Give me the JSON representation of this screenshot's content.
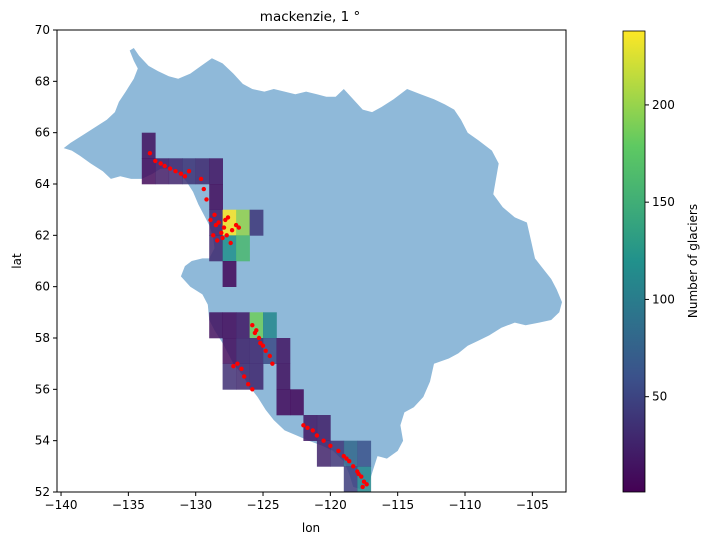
{
  "chart_data": {
    "type": "heatmap",
    "title": "mackenzie, 1 °",
    "xlabel": "lon",
    "ylabel": "lat",
    "xlim": [
      -140.3,
      -102.5
    ],
    "ylim": [
      52,
      70
    ],
    "xticks": [
      -140,
      -135,
      -130,
      -125,
      -120,
      -115,
      -110,
      -105
    ],
    "yticks": [
      52,
      54,
      56,
      58,
      60,
      62,
      64,
      66,
      68,
      70
    ],
    "grid": false,
    "colormap": "viridis",
    "colorbar": {
      "label": "Number of glaciers",
      "min": 1,
      "max": 238,
      "ticks": [
        50,
        100,
        150,
        200
      ]
    },
    "basin_color": "#8fb9d9",
    "point_color": "#ff0000",
    "basin_outline": [
      [
        -139.8,
        65.4
      ],
      [
        -139.2,
        65.3
      ],
      [
        -138.6,
        65.1
      ],
      [
        -137.8,
        64.8
      ],
      [
        -136.9,
        64.5
      ],
      [
        -136.3,
        64.2
      ],
      [
        -135.6,
        64.3
      ],
      [
        -134.8,
        64.2
      ],
      [
        -134.0,
        64.2
      ],
      [
        -133.2,
        64.4
      ],
      [
        -132.6,
        64.6
      ],
      [
        -131.8,
        64.6
      ],
      [
        -131.2,
        64.4
      ],
      [
        -130.7,
        64.1
      ],
      [
        -130.2,
        63.7
      ],
      [
        -129.8,
        63.2
      ],
      [
        -129.4,
        62.8
      ],
      [
        -129.0,
        62.4
      ],
      [
        -128.7,
        61.9
      ],
      [
        -128.6,
        61.5
      ],
      [
        -129.0,
        61.1
      ],
      [
        -129.5,
        61.1
      ],
      [
        -130.3,
        61.0
      ],
      [
        -130.8,
        60.8
      ],
      [
        -131.1,
        60.4
      ],
      [
        -130.4,
        60.0
      ],
      [
        -129.5,
        59.7
      ],
      [
        -129.1,
        59.3
      ],
      [
        -129.0,
        58.7
      ],
      [
        -128.6,
        58.3
      ],
      [
        -128.0,
        57.8
      ],
      [
        -127.6,
        57.4
      ],
      [
        -127.2,
        57.0
      ],
      [
        -126.6,
        56.6
      ],
      [
        -126.0,
        56.1
      ],
      [
        -125.4,
        55.7
      ],
      [
        -124.8,
        55.2
      ],
      [
        -124.2,
        54.8
      ],
      [
        -123.4,
        54.4
      ],
      [
        -122.5,
        54.2
      ],
      [
        -121.6,
        54.0
      ],
      [
        -120.6,
        53.8
      ],
      [
        -119.8,
        53.6
      ],
      [
        -119.0,
        53.2
      ],
      [
        -118.6,
        52.7
      ],
      [
        -118.3,
        52.2
      ],
      [
        -117.7,
        52.1
      ],
      [
        -117.1,
        52.4
      ],
      [
        -116.8,
        52.9
      ],
      [
        -116.5,
        53.4
      ],
      [
        -115.8,
        53.3
      ],
      [
        -115.0,
        53.6
      ],
      [
        -114.6,
        54.0
      ],
      [
        -114.8,
        54.6
      ],
      [
        -114.5,
        55.1
      ],
      [
        -113.8,
        55.3
      ],
      [
        -113.1,
        55.7
      ],
      [
        -112.6,
        56.3
      ],
      [
        -112.3,
        57.0
      ],
      [
        -111.2,
        57.2
      ],
      [
        -110.5,
        57.4
      ],
      [
        -109.8,
        57.7
      ],
      [
        -109.0,
        57.9
      ],
      [
        -108.2,
        58.1
      ],
      [
        -107.3,
        58.4
      ],
      [
        -106.3,
        58.6
      ],
      [
        -105.5,
        58.5
      ],
      [
        -104.5,
        58.6
      ],
      [
        -103.6,
        58.7
      ],
      [
        -103.0,
        59.0
      ],
      [
        -102.8,
        59.4
      ],
      [
        -103.2,
        59.9
      ],
      [
        -103.6,
        60.3
      ],
      [
        -104.2,
        60.7
      ],
      [
        -104.8,
        61.1
      ],
      [
        -105.1,
        61.8
      ],
      [
        -105.4,
        62.5
      ],
      [
        -106.3,
        62.7
      ],
      [
        -107.2,
        63.1
      ],
      [
        -107.9,
        63.6
      ],
      [
        -107.7,
        64.2
      ],
      [
        -107.5,
        64.8
      ],
      [
        -108.0,
        65.3
      ],
      [
        -109.0,
        65.7
      ],
      [
        -109.8,
        66.0
      ],
      [
        -110.3,
        66.5
      ],
      [
        -110.8,
        66.9
      ],
      [
        -111.5,
        67.1
      ],
      [
        -112.3,
        67.3
      ],
      [
        -113.3,
        67.5
      ],
      [
        -114.3,
        67.7
      ],
      [
        -115.3,
        67.3
      ],
      [
        -116.2,
        67.0
      ],
      [
        -116.9,
        66.8
      ],
      [
        -117.6,
        66.9
      ],
      [
        -118.3,
        67.3
      ],
      [
        -119.0,
        67.7
      ],
      [
        -119.6,
        67.4
      ],
      [
        -120.3,
        67.4
      ],
      [
        -121.0,
        67.5
      ],
      [
        -121.8,
        67.6
      ],
      [
        -122.6,
        67.5
      ],
      [
        -123.4,
        67.6
      ],
      [
        -124.2,
        67.7
      ],
      [
        -124.9,
        67.6
      ],
      [
        -125.8,
        67.7
      ],
      [
        -126.5,
        67.9
      ],
      [
        -127.2,
        68.3
      ],
      [
        -128.0,
        68.7
      ],
      [
        -128.8,
        68.9
      ],
      [
        -129.6,
        68.6
      ],
      [
        -130.4,
        68.3
      ],
      [
        -131.3,
        68.1
      ],
      [
        -132.0,
        68.2
      ],
      [
        -132.8,
        68.4
      ],
      [
        -133.5,
        68.6
      ],
      [
        -134.2,
        69.0
      ],
      [
        -134.6,
        69.3
      ],
      [
        -134.9,
        69.2
      ],
      [
        -134.6,
        68.8
      ],
      [
        -134.3,
        68.5
      ],
      [
        -134.6,
        68.1
      ],
      [
        -135.2,
        67.6
      ],
      [
        -135.7,
        67.2
      ],
      [
        -136.0,
        66.8
      ],
      [
        -136.6,
        66.5
      ],
      [
        -137.5,
        66.2
      ],
      [
        -138.4,
        65.9
      ],
      [
        -139.3,
        65.6
      ],
      [
        -139.8,
        65.4
      ]
    ],
    "cells": [
      {
        "lon": -134,
        "lat": 65,
        "count": 12
      },
      {
        "lon": -134,
        "lat": 64,
        "count": 8
      },
      {
        "lon": -133,
        "lat": 64,
        "count": 20
      },
      {
        "lon": -132,
        "lat": 64,
        "count": 28
      },
      {
        "lon": -131,
        "lat": 64,
        "count": 38
      },
      {
        "lon": -130,
        "lat": 64,
        "count": 30
      },
      {
        "lon": -129,
        "lat": 64,
        "count": 15
      },
      {
        "lon": -129,
        "lat": 63,
        "count": 10
      },
      {
        "lon": -129,
        "lat": 62,
        "count": 22
      },
      {
        "lon": -128,
        "lat": 62,
        "count": 238
      },
      {
        "lon": -127,
        "lat": 62,
        "count": 200
      },
      {
        "lon": -126,
        "lat": 62,
        "count": 40
      },
      {
        "lon": -129,
        "lat": 61,
        "count": 30
      },
      {
        "lon": -128,
        "lat": 61,
        "count": 120
      },
      {
        "lon": -127,
        "lat": 61,
        "count": 160
      },
      {
        "lon": -128,
        "lat": 60,
        "count": 5
      },
      {
        "lon": -129,
        "lat": 58,
        "count": 12
      },
      {
        "lon": -128,
        "lat": 58,
        "count": 8
      },
      {
        "lon": -127,
        "lat": 58,
        "count": 18
      },
      {
        "lon": -126,
        "lat": 58,
        "count": 185
      },
      {
        "lon": -125,
        "lat": 58,
        "count": 110
      },
      {
        "lon": -128,
        "lat": 57,
        "count": 10
      },
      {
        "lon": -127,
        "lat": 57,
        "count": 25
      },
      {
        "lon": -126,
        "lat": 57,
        "count": 28
      },
      {
        "lon": -125,
        "lat": 57,
        "count": 55
      },
      {
        "lon": -124,
        "lat": 57,
        "count": 15
      },
      {
        "lon": -128,
        "lat": 56,
        "count": 35
      },
      {
        "lon": -127,
        "lat": 56,
        "count": 30
      },
      {
        "lon": -126,
        "lat": 56,
        "count": 28
      },
      {
        "lon": -124,
        "lat": 56,
        "count": 12
      },
      {
        "lon": -124,
        "lat": 55,
        "count": 8
      },
      {
        "lon": -123,
        "lat": 55,
        "count": 5
      },
      {
        "lon": -122,
        "lat": 54,
        "count": 18
      },
      {
        "lon": -121,
        "lat": 54,
        "count": 22
      },
      {
        "lon": -121,
        "lat": 53,
        "count": 25
      },
      {
        "lon": -120,
        "lat": 53,
        "count": 40
      },
      {
        "lon": -119,
        "lat": 53,
        "count": 80
      },
      {
        "lon": -119,
        "lat": 52,
        "count": 45
      },
      {
        "lon": -118,
        "lat": 52,
        "count": 110
      },
      {
        "lon": -118,
        "lat": 53,
        "count": 60
      }
    ],
    "points": [
      [
        -133.4,
        65.2
      ],
      [
        -133.0,
        64.9
      ],
      [
        -132.6,
        64.8
      ],
      [
        -132.3,
        64.7
      ],
      [
        -131.9,
        64.6
      ],
      [
        -131.5,
        64.5
      ],
      [
        -131.1,
        64.4
      ],
      [
        -130.8,
        64.3
      ],
      [
        -130.5,
        64.5
      ],
      [
        -129.6,
        64.2
      ],
      [
        -129.4,
        63.8
      ],
      [
        -129.2,
        63.4
      ],
      [
        -128.6,
        62.8
      ],
      [
        -128.3,
        62.5
      ],
      [
        -127.9,
        62.3
      ],
      [
        -127.6,
        62.7
      ],
      [
        -127.3,
        62.2
      ],
      [
        -127.0,
        62.4
      ],
      [
        -126.8,
        62.3
      ],
      [
        -128.7,
        62.0
      ],
      [
        -128.4,
        61.8
      ],
      [
        -128.0,
        61.9
      ],
      [
        -127.7,
        62.0
      ],
      [
        -127.4,
        61.7
      ],
      [
        -128.5,
        62.4
      ],
      [
        -127.8,
        62.6
      ],
      [
        -128.1,
        62.1
      ],
      [
        -128.9,
        62.6
      ],
      [
        -125.8,
        58.5
      ],
      [
        -125.6,
        58.2
      ],
      [
        -125.3,
        58.0
      ],
      [
        -125.0,
        57.7
      ],
      [
        -124.8,
        57.5
      ],
      [
        -124.5,
        57.3
      ],
      [
        -124.3,
        57.0
      ],
      [
        -125.5,
        58.3
      ],
      [
        -125.2,
        57.8
      ],
      [
        -126.9,
        57.0
      ],
      [
        -126.6,
        56.8
      ],
      [
        -126.4,
        56.5
      ],
      [
        -126.1,
        56.2
      ],
      [
        -125.8,
        56.0
      ],
      [
        -127.2,
        56.9
      ],
      [
        -122.0,
        54.6
      ],
      [
        -121.7,
        54.5
      ],
      [
        -121.3,
        54.4
      ],
      [
        -121.0,
        54.2
      ],
      [
        -120.5,
        54.0
      ],
      [
        -120.0,
        53.8
      ],
      [
        -119.4,
        53.6
      ],
      [
        -119.0,
        53.4
      ],
      [
        -118.6,
        53.2
      ],
      [
        -118.3,
        53.0
      ],
      [
        -118.0,
        52.8
      ],
      [
        -117.7,
        52.6
      ],
      [
        -117.5,
        52.4
      ],
      [
        -117.3,
        52.3
      ],
      [
        -117.9,
        52.7
      ],
      [
        -118.8,
        53.3
      ],
      [
        -117.6,
        52.2
      ]
    ]
  }
}
